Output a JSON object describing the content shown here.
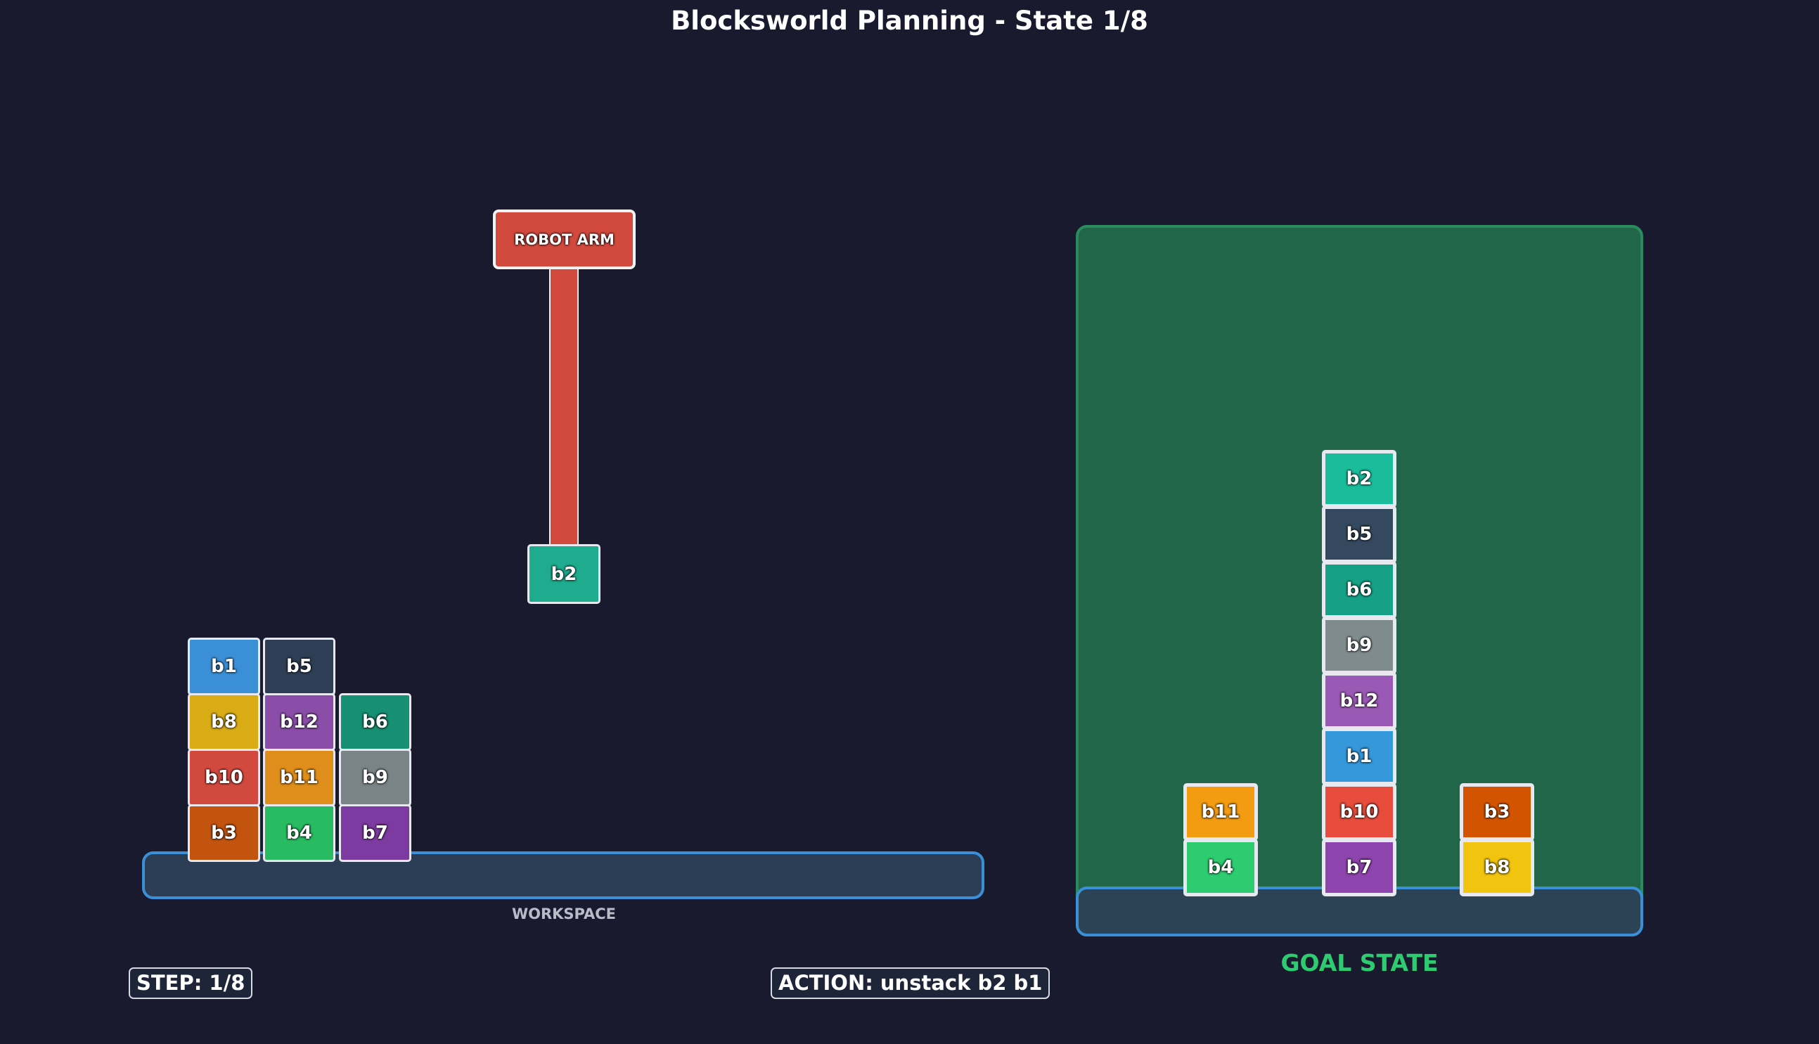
{
  "title": "Blocksworld Planning - State 1/8",
  "workspace_label": "WORKSPACE",
  "goal_label": "GOAL STATE",
  "robot_arm": {
    "label": "ROBOT ARM",
    "holding": "b2"
  },
  "step_badge": "STEP: 1/8",
  "action_badge": "ACTION: unstack b2 b1",
  "colors": {
    "background": "#1a1a2e",
    "goal_panel": "#22664a",
    "table_border": "#3a8fd6",
    "goal_label": "#2ecc71"
  },
  "current_state": {
    "stacks": [
      {
        "bottom_to_top": [
          "b3",
          "b10",
          "b8",
          "b1"
        ]
      },
      {
        "bottom_to_top": [
          "b4",
          "b11",
          "b12",
          "b5"
        ]
      },
      {
        "bottom_to_top": [
          "b7",
          "b9",
          "b6"
        ]
      }
    ]
  },
  "goal_state": {
    "stacks": [
      {
        "bottom_to_top": [
          "b4",
          "b11"
        ]
      },
      {
        "bottom_to_top": [
          "b7",
          "b10",
          "b1",
          "b12",
          "b9",
          "b6",
          "b5",
          "b2"
        ]
      },
      {
        "bottom_to_top": [
          "b8",
          "b3"
        ]
      }
    ]
  },
  "block_colors": {
    "current": {
      "b1": "#3a8fd6",
      "b2": "#1fab8e",
      "b3": "#c2540f",
      "b4": "#28bb62",
      "b5": "#2e3f55",
      "b6": "#178f72",
      "b7": "#7d3aa0",
      "b8": "#d9ac15",
      "b9": "#7a8487",
      "b10": "#d24a3e",
      "b11": "#e08e1b",
      "b12": "#8b4ea8"
    },
    "goal": {
      "b1": "#3498db",
      "b2": "#1abc9c",
      "b3": "#d35400",
      "b4": "#2ecc71",
      "b5": "#34495e",
      "b6": "#16a085",
      "b7": "#8e44ad",
      "b8": "#f1c40f",
      "b9": "#7f8c8d",
      "b10": "#e74c3c",
      "b11": "#f39c12",
      "b12": "#9b59b6"
    }
  }
}
